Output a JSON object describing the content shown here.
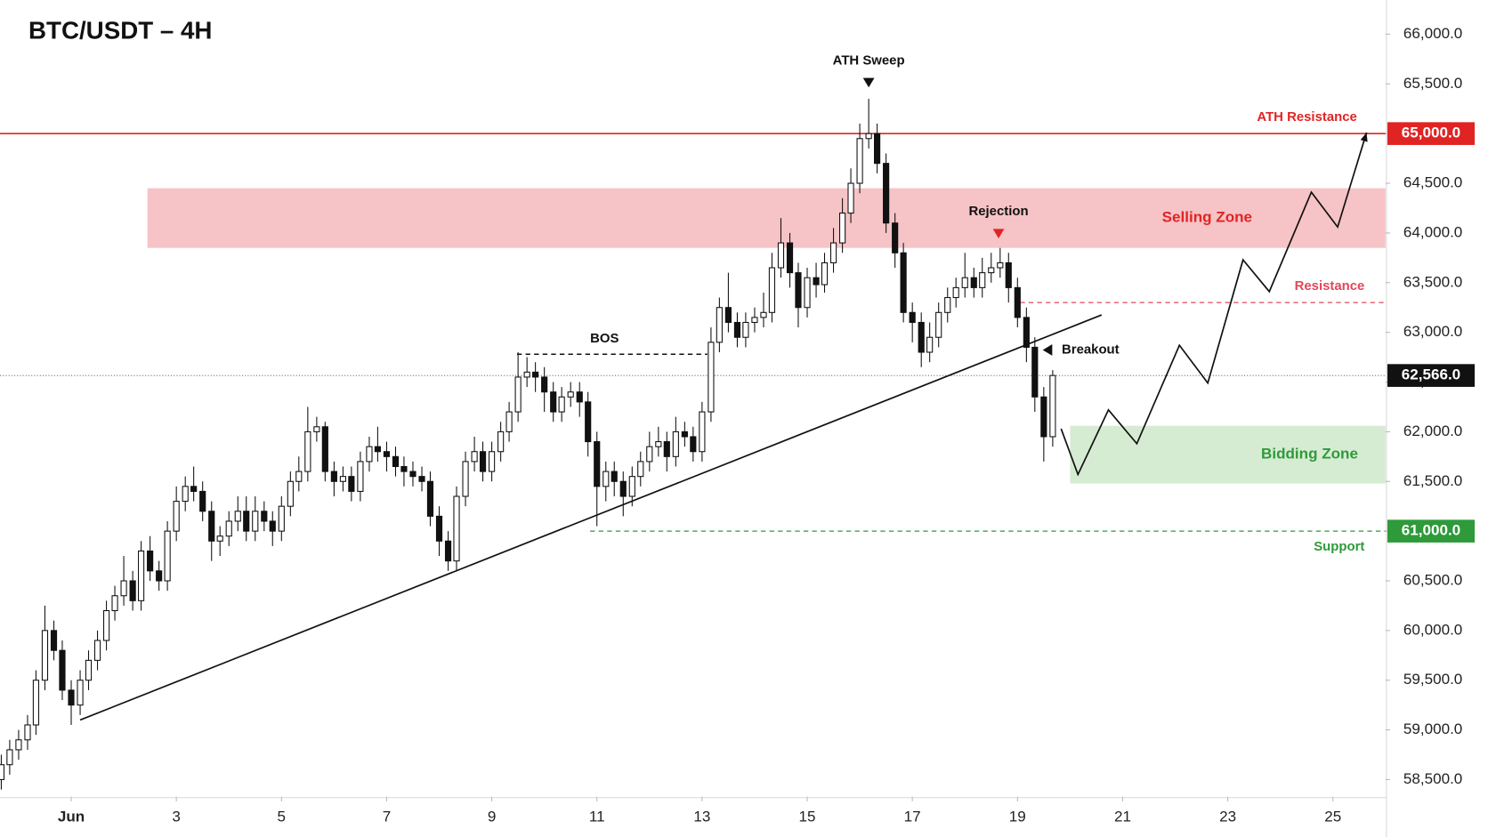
{
  "chart_data": {
    "type": "candlestick",
    "title": "BTC/USDT – 4H",
    "up_color": "#ffffff",
    "down_color": "#111111",
    "xlim": [
      -0.354,
      26
    ],
    "ylim": [
      58328,
      66344
    ],
    "xticks": [
      {
        "value": 1,
        "label": "Jun"
      },
      3,
      5,
      7,
      9,
      11,
      13,
      15,
      17,
      19,
      21,
      23,
      25
    ],
    "yticks": [
      {
        "value": 58500,
        "label": "58,500.0"
      },
      {
        "value": 59000,
        "label": "59,000.0"
      },
      {
        "value": 59500,
        "label": "59,500.0"
      },
      {
        "value": 60000,
        "label": "60,000.0"
      },
      {
        "value": 60500,
        "label": "60,500.0"
      },
      {
        "value": 61000,
        "label": "61,000.0"
      },
      {
        "value": 61500,
        "label": "61,500.0"
      },
      {
        "value": 62000,
        "label": "62,000.0"
      },
      {
        "value": 62500,
        "label": "62,500.0"
      },
      {
        "value": 63000,
        "label": "63,000.0"
      },
      {
        "value": 63500,
        "label": "63,500.0"
      },
      {
        "value": 64000,
        "label": "64,000.0"
      },
      {
        "value": 64500,
        "label": "64,500.0"
      },
      {
        "value": 65000,
        "label": "65,000.0"
      },
      {
        "value": 65500,
        "label": "65,500.0"
      },
      {
        "value": 66000,
        "label": "66,000.0"
      }
    ],
    "x": [
      -0.33,
      -0.17,
      0,
      0.17,
      0.33,
      0.5,
      0.67,
      0.83,
      1,
      1.17,
      1.33,
      1.5,
      1.67,
      1.83,
      2,
      2.17,
      2.33,
      2.5,
      2.67,
      2.83,
      3,
      3.17,
      3.33,
      3.5,
      3.67,
      3.83,
      4,
      4.17,
      4.33,
      4.5,
      4.67,
      4.83,
      5,
      5.17,
      5.33,
      5.5,
      5.67,
      5.83,
      6,
      6.17,
      6.33,
      6.5,
      6.67,
      6.83,
      7,
      7.17,
      7.33,
      7.5,
      7.67,
      7.83,
      8,
      8.17,
      8.33,
      8.5,
      8.67,
      8.83,
      9,
      9.17,
      9.33,
      9.5,
      9.67,
      9.83,
      10,
      10.17,
      10.33,
      10.5,
      10.67,
      10.83,
      11,
      11.17,
      11.33,
      11.5,
      11.67,
      11.83,
      12,
      12.17,
      12.33,
      12.5,
      12.67,
      12.83,
      13,
      13.17,
      13.33,
      13.5,
      13.67,
      13.83,
      14,
      14.17,
      14.33,
      14.5,
      14.67,
      14.83,
      15,
      15.17,
      15.33,
      15.5,
      15.67,
      15.83,
      16,
      16.17,
      16.33,
      16.5,
      16.67,
      16.83,
      17,
      17.17,
      17.33,
      17.5,
      17.67,
      17.83,
      18,
      18.17,
      18.33,
      18.5,
      18.67,
      18.83,
      19,
      19.17,
      19.33,
      19.5,
      19.67
    ],
    "open": [
      58500,
      58650,
      58800,
      58900,
      59050,
      59500,
      60000,
      59800,
      59400,
      59250,
      59500,
      59700,
      59900,
      60200,
      60350,
      60500,
      60300,
      60800,
      60600,
      60500,
      61000,
      61300,
      61450,
      61400,
      61200,
      60900,
      60950,
      61100,
      61200,
      61000,
      61200,
      61100,
      61000,
      61250,
      61500,
      61600,
      62000,
      62050,
      61600,
      61500,
      61550,
      61400,
      61700,
      61850,
      61800,
      61750,
      61650,
      61600,
      61550,
      61500,
      61150,
      60900,
      60700,
      61350,
      61700,
      61800,
      61600,
      61800,
      62000,
      62200,
      62550,
      62600,
      62550,
      62400,
      62200,
      62350,
      62400,
      62300,
      61900,
      61450,
      61600,
      61500,
      61350,
      61550,
      61700,
      61850,
      61900,
      61750,
      62000,
      61950,
      61800,
      62200,
      62900,
      63250,
      63100,
      62950,
      63100,
      63150,
      63200,
      63650,
      63900,
      63600,
      63250,
      63550,
      63480,
      63700,
      63900,
      64200,
      64500,
      64950,
      65000,
      64700,
      64100,
      63800,
      63200,
      63100,
      62800,
      62950,
      63200,
      63350,
      63450,
      63550,
      63450,
      63600,
      63650,
      63700,
      63450,
      63150,
      62850,
      62350,
      61950
    ],
    "high": [
      58750,
      58900,
      59000,
      59150,
      59600,
      60250,
      60100,
      59900,
      59500,
      59600,
      59800,
      60000,
      60300,
      60450,
      60750,
      60600,
      60900,
      60950,
      60700,
      61100,
      61450,
      61550,
      61650,
      61500,
      61300,
      61050,
      61200,
      61350,
      61350,
      61350,
      61300,
      61200,
      61350,
      61600,
      61750,
      62250,
      62150,
      62100,
      61700,
      61650,
      61650,
      61800,
      61950,
      62050,
      61900,
      61850,
      61750,
      61700,
      61650,
      61600,
      61250,
      61000,
      61450,
      61800,
      61950,
      61900,
      61900,
      62100,
      62300,
      62800,
      62750,
      62700,
      62650,
      62500,
      62450,
      62500,
      62500,
      62400,
      62000,
      61700,
      61700,
      61600,
      61650,
      61800,
      62000,
      62050,
      62000,
      62150,
      62100,
      62050,
      62300,
      63050,
      63350,
      63600,
      63200,
      63200,
      63250,
      63400,
      63800,
      64150,
      64000,
      63700,
      63650,
      63700,
      63800,
      64050,
      64350,
      64650,
      65100,
      65350,
      65100,
      64800,
      64200,
      63900,
      63300,
      63200,
      63100,
      63300,
      63450,
      63550,
      63800,
      63650,
      63750,
      63800,
      63850,
      63800,
      63550,
      63250,
      62950,
      62450,
      62620
    ],
    "low": [
      58400,
      58550,
      58700,
      58800,
      58950,
      59400,
      59700,
      59300,
      59050,
      59150,
      59400,
      59600,
      59800,
      60100,
      60250,
      60200,
      60200,
      60500,
      60400,
      60400,
      60900,
      61200,
      61300,
      61100,
      60700,
      60750,
      60850,
      61000,
      60900,
      60900,
      61000,
      60850,
      60900,
      61150,
      61400,
      61500,
      61900,
      61500,
      61350,
      61400,
      61300,
      61300,
      61600,
      61700,
      61600,
      61550,
      61450,
      61450,
      61400,
      61050,
      60750,
      60600,
      60600,
      61250,
      61600,
      61500,
      61500,
      61700,
      61900,
      62100,
      62450,
      62400,
      62200,
      62100,
      62100,
      62250,
      62150,
      61750,
      61050,
      61300,
      61350,
      61150,
      61250,
      61450,
      61600,
      61750,
      61600,
      61650,
      61850,
      61700,
      61700,
      62100,
      62800,
      63000,
      62850,
      62850,
      63000,
      63050,
      63100,
      63550,
      63450,
      63050,
      63150,
      63350,
      63400,
      63600,
      63800,
      64100,
      64400,
      64850,
      64600,
      64000,
      63650,
      63100,
      62900,
      62650,
      62700,
      62850,
      63100,
      63250,
      63350,
      63350,
      63350,
      63500,
      63550,
      63300,
      63050,
      62700,
      62200,
      61700,
      61850
    ],
    "close": [
      58650,
      58800,
      58900,
      59050,
      59500,
      60000,
      59800,
      59400,
      59250,
      59500,
      59700,
      59900,
      60200,
      60350,
      60500,
      60300,
      60800,
      60600,
      60500,
      61000,
      61300,
      61450,
      61400,
      61200,
      60900,
      60950,
      61100,
      61200,
      61000,
      61200,
      61100,
      61000,
      61250,
      61500,
      61600,
      62000,
      62050,
      61600,
      61500,
      61550,
      61400,
      61700,
      61850,
      61800,
      61750,
      61650,
      61600,
      61550,
      61500,
      61150,
      60900,
      60700,
      61350,
      61700,
      61800,
      61600,
      61800,
      62000,
      62200,
      62550,
      62600,
      62550,
      62400,
      62200,
      62350,
      62400,
      62300,
      61900,
      61450,
      61600,
      61500,
      61350,
      61550,
      61700,
      61850,
      61900,
      61750,
      62000,
      61950,
      61800,
      62200,
      62900,
      63250,
      63100,
      62950,
      63100,
      63150,
      63200,
      63650,
      63900,
      63600,
      63250,
      63550,
      63480,
      63700,
      63900,
      64200,
      64500,
      64950,
      65000,
      64700,
      64100,
      63800,
      63200,
      63100,
      62800,
      62950,
      63200,
      63350,
      63450,
      63550,
      63450,
      63600,
      63650,
      63700,
      63450,
      63150,
      62850,
      62350,
      61950,
      62566
    ],
    "last_price": {
      "value": 62566,
      "label": "62,566.0"
    },
    "levels": [
      {
        "label": "ATH Resistance",
        "value": 65000,
        "tag": "65,000.0",
        "start": -0.354,
        "color": "#e02424"
      },
      {
        "label": "Resistance",
        "value": 63300,
        "start": 19.05,
        "color": "#e0485a"
      },
      {
        "label": "Support",
        "value": 61000,
        "tag": "61,000.0",
        "start": 10.87,
        "color": "#2e9a3a"
      }
    ],
    "zones": [
      {
        "label": "Selling Zone",
        "low": 63850,
        "high": 64450,
        "start": 2.45,
        "color": "#f6c3c6",
        "text_color": "#e02424"
      },
      {
        "label": "Bidding Zone",
        "low": 61480,
        "high": 62060,
        "start": 20,
        "color": "#d6ecd2",
        "text_color": "#2e9a3a"
      }
    ],
    "bos": {
      "label": "BOS",
      "value": 62780,
      "x": [
        9.48,
        13.1
      ]
    },
    "markers": [
      {
        "label": "ATH Sweep",
        "x": 16.17,
        "value": 65350,
        "color": "#111111"
      },
      {
        "label": "Rejection",
        "x": 18.64,
        "value": 63850,
        "color": "#e02424"
      }
    ],
    "breakout": {
      "label": "Breakout",
      "x": 19.3,
      "value": 62880
    },
    "trendline": {
      "x": [
        1.17,
        20.6
      ],
      "y": [
        59100,
        63175
      ]
    },
    "projection": {
      "x": [
        19.83,
        20.15,
        20.73,
        21.27,
        22.08,
        22.62,
        23.29,
        23.79,
        24.59,
        25.09,
        25.64
      ],
      "y": [
        62030,
        61570,
        62220,
        61880,
        62870,
        62490,
        63730,
        63410,
        64410,
        64060,
        65010
      ]
    }
  }
}
